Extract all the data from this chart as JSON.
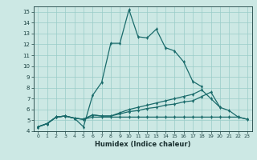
{
  "xlabel": "Humidex (Indice chaleur)",
  "background_color": "#cce8e4",
  "grid_color": "#99ccc8",
  "line_color": "#1a6b6b",
  "xlim": [
    -0.5,
    23.5
  ],
  "ylim": [
    4,
    15.5
  ],
  "xticks": [
    0,
    1,
    2,
    3,
    4,
    5,
    6,
    7,
    8,
    9,
    10,
    11,
    12,
    13,
    14,
    15,
    16,
    17,
    18,
    19,
    20,
    21,
    22,
    23
  ],
  "yticks": [
    4,
    5,
    6,
    7,
    8,
    9,
    10,
    11,
    12,
    13,
    14,
    15
  ],
  "line1_x": [
    0,
    1,
    2,
    3,
    4,
    5,
    6,
    7,
    8,
    9,
    10,
    11,
    12,
    13,
    14,
    15,
    16,
    17,
    18
  ],
  "line1_y": [
    4.4,
    4.7,
    5.3,
    5.4,
    5.2,
    4.4,
    7.3,
    8.5,
    12.1,
    12.1,
    15.2,
    12.7,
    12.6,
    13.4,
    11.7,
    11.4,
    10.4,
    8.6,
    8.1
  ],
  "line2_x": [
    0,
    1,
    2,
    3,
    4,
    5,
    6,
    7,
    8,
    9,
    10,
    11,
    12,
    13,
    14,
    15,
    16,
    17,
    18,
    19,
    20
  ],
  "line2_y": [
    4.4,
    4.7,
    5.3,
    5.4,
    5.2,
    5.1,
    5.5,
    5.4,
    5.4,
    5.7,
    6.0,
    6.2,
    6.4,
    6.6,
    6.8,
    7.0,
    7.2,
    7.4,
    7.8,
    7.0,
    6.2
  ],
  "line3_x": [
    0,
    1,
    2,
    3,
    4,
    5,
    6,
    7,
    8,
    9,
    10,
    11,
    12,
    13,
    14,
    15,
    16,
    17,
    18,
    19,
    20,
    21,
    22,
    23
  ],
  "line3_y": [
    4.4,
    4.7,
    5.3,
    5.4,
    5.2,
    5.1,
    5.5,
    5.4,
    5.4,
    5.6,
    5.8,
    5.9,
    6.1,
    6.2,
    6.4,
    6.5,
    6.7,
    6.8,
    7.2,
    7.6,
    6.2,
    5.9,
    5.3,
    5.1
  ],
  "line4_x": [
    0,
    1,
    2,
    3,
    4,
    5,
    6,
    7,
    8,
    9,
    10,
    11,
    12,
    13,
    14,
    15,
    16,
    17,
    18,
    19,
    20,
    21,
    22,
    23
  ],
  "line4_y": [
    4.4,
    4.7,
    5.3,
    5.4,
    5.2,
    5.1,
    5.3,
    5.3,
    5.3,
    5.3,
    5.3,
    5.3,
    5.3,
    5.3,
    5.3,
    5.3,
    5.3,
    5.3,
    5.3,
    5.3,
    5.3,
    5.3,
    5.3,
    5.1
  ]
}
